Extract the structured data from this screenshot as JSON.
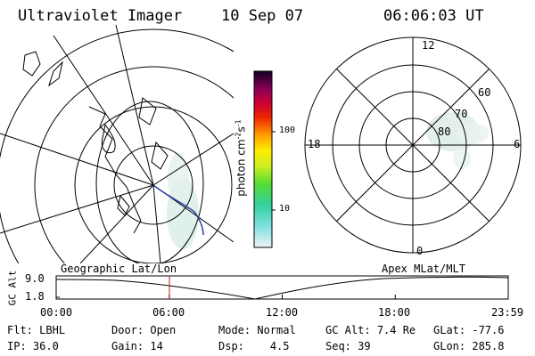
{
  "header": {
    "instrument": "Ultraviolet Imager",
    "date": "10 Sep 07",
    "time": "06:06:03 UT"
  },
  "colorbar": {
    "unit_label": "photon cm",
    "unit_sup1": "-2",
    "unit_mid": "s",
    "unit_sup2": "-1",
    "ticks": [
      "100",
      "10"
    ]
  },
  "geo_map": {
    "name": "Geographic Lat/Lon"
  },
  "polar_map": {
    "name": "Apex MLat/MLT",
    "mlt_labels": {
      "top": "12",
      "left": "18",
      "right": "6",
      "bottom": "0"
    },
    "lat_labels": [
      "60",
      "70",
      "80"
    ]
  },
  "timeline": {
    "ylabel": "GC Alt",
    "y_ticks": [
      "9.0",
      "1.8"
    ],
    "x_ticks": [
      "00:00",
      "06:00",
      "12:00",
      "18:00",
      "23:59"
    ]
  },
  "info": {
    "filter_label": "Flt:",
    "filter": "LBHL",
    "door_label": "Door:",
    "door": "Open",
    "mode_label": "Mode:",
    "mode": "Normal",
    "gcalt_label": "GC Alt:",
    "gcalt": "7.4 Re",
    "glat_label": "GLat:",
    "glat": "-77.6",
    "ip_label": "IP:",
    "ip": "36.0",
    "gain_label": "Gain:",
    "gain": "14",
    "dsp_label": "Dsp:",
    "dsp": "4.5",
    "seq_label": "Seq:",
    "seq": "39",
    "glon_label": "GLon:",
    "glon": "285.8"
  },
  "colors": {
    "orbit_track": "#2a3fa8",
    "current_time_marker": "#b22222",
    "aurora_glow": "#cfe6de"
  }
}
